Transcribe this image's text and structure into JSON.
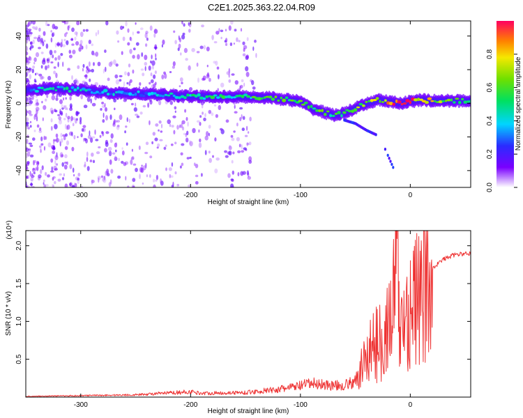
{
  "title": "C2E1.2025.363.22.04.R09",
  "colors": {
    "snr_line": "#ee3333",
    "background": "#ffffff",
    "axis": "#000000"
  },
  "chart_data": [
    {
      "type": "heatmap",
      "title": "C2E1.2025.363.22.04.R09",
      "xlabel": "Height of straight line (km)",
      "ylabel": "Frequency (Hz)",
      "xlim": [
        -350,
        55
      ],
      "ylim": [
        -50,
        49
      ],
      "xticks": [
        -300,
        -200,
        -100,
        0
      ],
      "xtick_labels": [
        "-300",
        "-200",
        "-100",
        "0"
      ],
      "yticks": [
        -40,
        -20,
        0,
        20,
        40
      ],
      "ytick_labels": [
        "-40",
        "-20",
        "0",
        "20",
        "40"
      ],
      "ridge": {
        "x": [
          -345,
          -330,
          -300,
          -270,
          -240,
          -200,
          -160,
          -130,
          -110,
          -100,
          -90,
          -80,
          -70,
          -60,
          -50,
          -42,
          -35,
          -28,
          -20,
          -10,
          0,
          10,
          20,
          30,
          40,
          55
        ],
        "y": [
          8,
          9,
          8,
          6,
          5.5,
          4,
          4,
          3.5,
          2,
          1,
          -3,
          -5,
          -7,
          -6,
          -3,
          -1,
          1,
          2,
          1,
          0,
          1,
          2,
          1.5,
          1.5,
          1.5,
          1.5
        ],
        "amplitude": [
          0.3,
          0.45,
          0.4,
          0.38,
          0.35,
          0.45,
          0.5,
          0.55,
          0.6,
          0.65,
          0.6,
          0.55,
          0.55,
          0.55,
          0.6,
          0.7,
          0.75,
          0.7,
          0.85,
          0.95,
          0.9,
          0.8,
          0.7,
          0.6,
          0.55,
          0.5
        ]
      },
      "secondary_branch": {
        "x": [
          -60,
          -50,
          -40,
          -30,
          -25,
          -15
        ],
        "y": [
          -10,
          -12,
          -16,
          -19,
          -24,
          -39
        ]
      },
      "colorbar": {
        "label": "Normalized spectral amplitude",
        "ticks": [
          0.0,
          0.2,
          0.4,
          0.6,
          0.8
        ],
        "tick_labels": [
          "0.0",
          "0.2",
          "0.4",
          "0.6",
          "0.8"
        ],
        "range": [
          0,
          1
        ]
      }
    },
    {
      "type": "line",
      "xlabel": "Height of straight line (km)",
      "ylabel": "SNR (10 * v/v)",
      "yscale_label": "(x10⁴)",
      "xlim": [
        -350,
        55
      ],
      "ylim": [
        0,
        2.2
      ],
      "xticks": [
        -300,
        -200,
        -100,
        0
      ],
      "xtick_labels": [
        "-300",
        "-200",
        "-100",
        "0"
      ],
      "yticks": [
        0.5,
        1.0,
        1.5,
        2.0
      ],
      "ytick_labels": [
        "0.5",
        "1.0",
        "1.5",
        "2.0"
      ],
      "series": [
        {
          "name": "SNR",
          "x": [
            -350,
            -300,
            -250,
            -200,
            -190,
            -150,
            -120,
            -100,
            -90,
            -80,
            -70,
            -60,
            -50,
            -45,
            -40,
            -35,
            -30,
            -25,
            -20,
            -15,
            -12,
            -10,
            -5,
            0,
            5,
            10,
            20,
            30,
            40,
            55
          ],
          "y": [
            0.01,
            0.02,
            0.03,
            0.07,
            0.05,
            0.06,
            0.1,
            0.15,
            0.18,
            0.17,
            0.15,
            0.16,
            0.2,
            0.4,
            0.65,
            0.75,
            0.8,
            0.95,
            1.05,
            1.45,
            2.2,
            1.0,
            1.2,
            1.35,
            1.45,
            1.55,
            1.7,
            1.82,
            1.88,
            1.9
          ]
        }
      ]
    }
  ]
}
